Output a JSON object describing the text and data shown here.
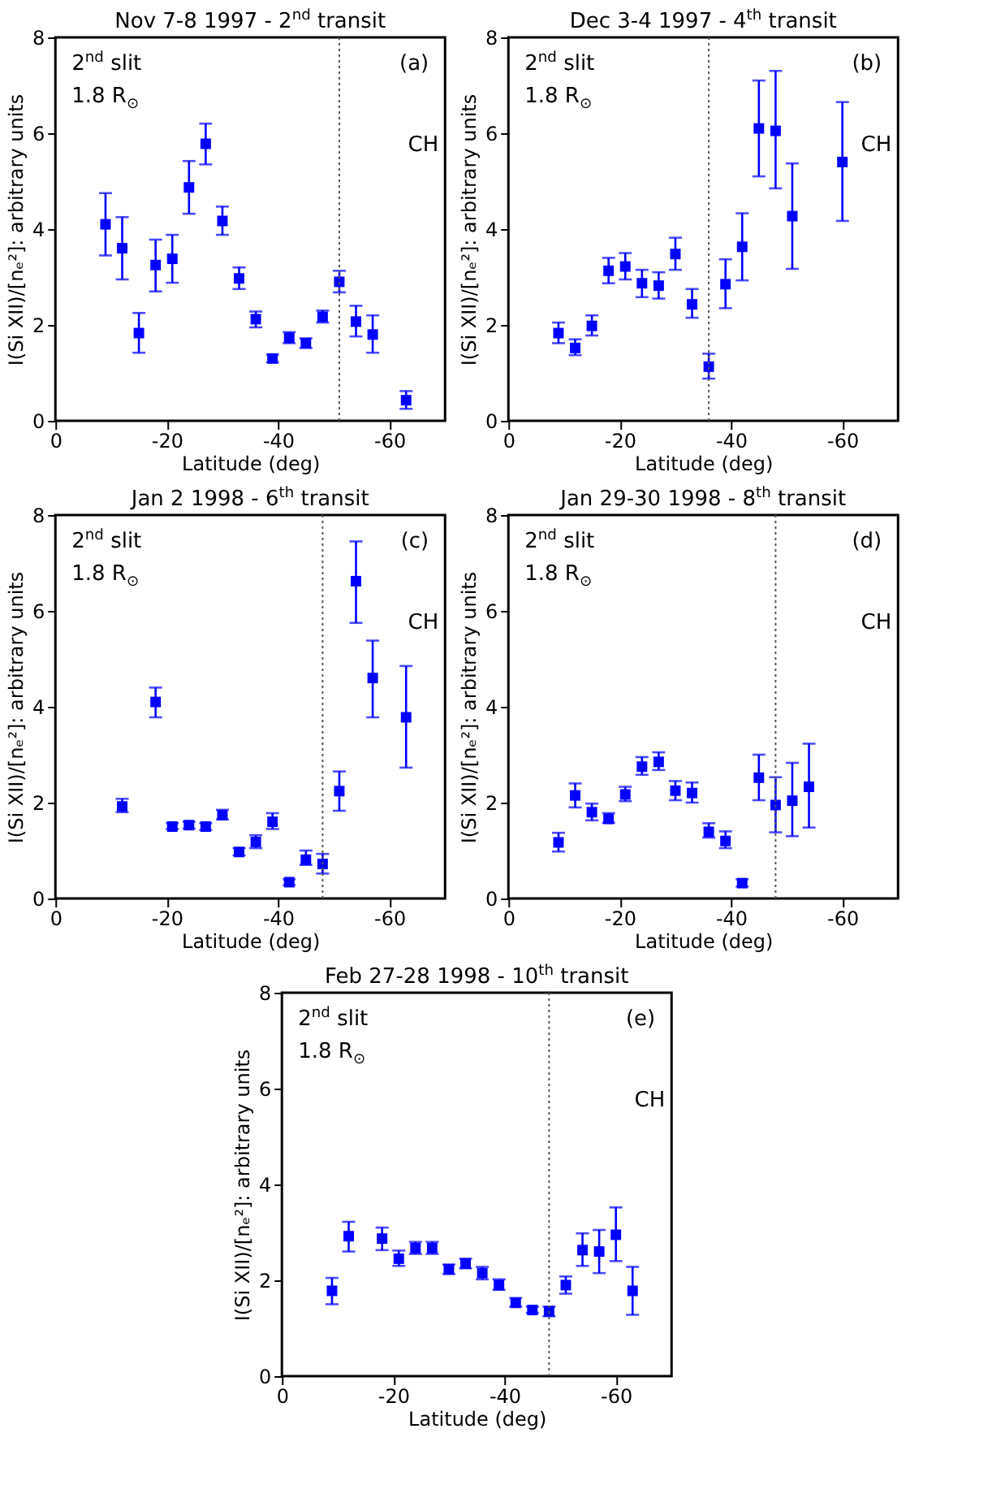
{
  "chart_data": [
    {
      "type": "scatter",
      "title": "Nov 7-8 1997 - 2$^{nd}$ transit",
      "xlabel": "Latitude (deg)",
      "ylabel": "I(Si XII)/[nₑ²]: arbitrary units",
      "xlim": [
        0,
        -70
      ],
      "ylim": [
        0,
        8
      ],
      "xticks": [
        0,
        -20,
        -40,
        -60
      ],
      "yticks": [
        0,
        2,
        4,
        6,
        8
      ],
      "marker": "square",
      "x": [
        -9,
        -12,
        -15,
        -18,
        -21,
        -24,
        -27,
        -30,
        -33,
        -36,
        -39,
        -42,
        -45,
        -48,
        -51,
        -54,
        -57,
        -63
      ],
      "series": [
        {
          "color": "#0000ff",
          "values": [
            4.1,
            3.6,
            1.83,
            3.25,
            3.38,
            4.87,
            5.78,
            4.17,
            2.97,
            2.12,
            1.3,
            1.73,
            1.62,
            2.17,
            2.9,
            2.07,
            1.8,
            0.43
          ],
          "errors": [
            [
              3.45,
              4.75
            ],
            [
              2.95,
              4.25
            ],
            [
              1.42,
              2.25
            ],
            [
              2.7,
              3.78
            ],
            [
              2.88,
              3.88
            ],
            [
              4.32,
              5.42
            ],
            [
              5.35,
              6.2
            ],
            [
              3.88,
              4.47
            ],
            [
              2.75,
              3.2
            ],
            [
              1.95,
              2.28
            ],
            [
              1.22,
              1.38
            ],
            [
              1.62,
              1.85
            ],
            [
              1.52,
              1.72
            ],
            [
              2.05,
              2.3
            ],
            [
              2.68,
              3.13
            ],
            [
              1.76,
              2.4
            ],
            [
              1.42,
              2.2
            ],
            [
              0.25,
              0.62
            ]
          ]
        }
      ],
      "ref_lines": [
        {
          "axis": "x",
          "value": -51,
          "color": "#555555",
          "line_style": "dotted"
        }
      ],
      "annotations": [
        "2$^{nd}$ slit",
        "1.8 R$_{⊙}$",
        "(a)",
        "CH"
      ]
    },
    {
      "type": "scatter",
      "title": "Dec 3-4 1997 - 4$^{th}$ transit",
      "xlabel": "Latitude (deg)",
      "ylabel": "I(Si XII)/[nₑ²]: arbitrary units",
      "xlim": [
        0,
        -70
      ],
      "ylim": [
        0,
        8
      ],
      "xticks": [
        0,
        -20,
        -40,
        -60
      ],
      "yticks": [
        0,
        2,
        4,
        6,
        8
      ],
      "marker": "square",
      "x": [
        -9,
        -12,
        -15,
        -18,
        -21,
        -24,
        -27,
        -30,
        -33,
        -36,
        -39,
        -42,
        -45,
        -48,
        -51,
        -60
      ],
      "series": [
        {
          "color": "#0000ff",
          "values": [
            1.83,
            1.52,
            1.98,
            3.13,
            3.22,
            2.87,
            2.82,
            3.48,
            2.43,
            1.13,
            2.85,
            3.63,
            6.1,
            6.05,
            4.27,
            5.4
          ],
          "errors": [
            [
              1.62,
              2.05
            ],
            [
              1.37,
              1.7
            ],
            [
              1.78,
              2.2
            ],
            [
              2.87,
              3.4
            ],
            [
              2.95,
              3.5
            ],
            [
              2.58,
              3.15
            ],
            [
              2.55,
              3.1
            ],
            [
              3.15,
              3.82
            ],
            [
              2.15,
              2.75
            ],
            [
              0.88,
              1.4
            ],
            [
              2.35,
              3.37
            ],
            [
              2.93,
              4.33
            ],
            [
              5.1,
              7.1
            ],
            [
              4.85,
              7.3
            ],
            [
              3.17,
              5.37
            ],
            [
              4.17,
              6.65
            ]
          ]
        }
      ],
      "ref_lines": [
        {
          "axis": "x",
          "value": -36,
          "color": "#555555",
          "line_style": "dotted"
        }
      ],
      "annotations": [
        "2$^{nd}$ slit",
        "1.8 R$_{⊙}$",
        "(b)",
        "CH"
      ]
    },
    {
      "type": "scatter",
      "title": "Jan 2 1998 - 6$^{th}$ transit",
      "xlabel": "Latitude (deg)",
      "ylabel": "I(Si XII)/[nₑ²]: arbitrary units",
      "xlim": [
        0,
        -70
      ],
      "ylim": [
        0,
        8
      ],
      "xticks": [
        0,
        -20,
        -40,
        -60
      ],
      "yticks": [
        0,
        2,
        4,
        6,
        8
      ],
      "marker": "square",
      "x": [
        -12,
        -18,
        -21,
        -24,
        -27,
        -30,
        -33,
        -36,
        -39,
        -42,
        -45,
        -48,
        -51,
        -54,
        -57,
        -63
      ],
      "series": [
        {
          "color": "#0000ff",
          "values": [
            1.92,
            4.1,
            1.5,
            1.53,
            1.5,
            1.74,
            0.97,
            1.18,
            1.6,
            0.34,
            0.81,
            0.72,
            2.24,
            6.62,
            4.6,
            3.78
          ],
          "errors": [
            [
              1.8,
              2.08
            ],
            [
              3.78,
              4.4
            ],
            [
              1.45,
              1.57
            ],
            [
              1.46,
              1.6
            ],
            [
              1.43,
              1.57
            ],
            [
              1.65,
              1.85
            ],
            [
              0.9,
              1.05
            ],
            [
              1.05,
              1.32
            ],
            [
              1.45,
              1.78
            ],
            [
              0.28,
              0.4
            ],
            [
              0.7,
              1.0
            ],
            [
              0.52,
              0.93
            ],
            [
              1.83,
              2.65
            ],
            [
              5.75,
              7.45
            ],
            [
              3.78,
              5.38
            ],
            [
              2.73,
              4.85
            ]
          ]
        }
      ],
      "ref_lines": [
        {
          "axis": "x",
          "value": -48,
          "color": "#555555",
          "line_style": "dotted"
        }
      ],
      "annotations": [
        "2$^{nd}$ slit",
        "1.8 R$_{⊙}$",
        "(c)",
        "CH"
      ]
    },
    {
      "type": "scatter",
      "title": "Jan 29-30 1998 - 8$^{th}$ transit",
      "xlabel": "Latitude (deg)",
      "ylabel": "I(Si XII)/[nₑ²]: arbitrary units",
      "xlim": [
        0,
        -70
      ],
      "ylim": [
        0,
        8
      ],
      "xticks": [
        0,
        -20,
        -40,
        -60
      ],
      "yticks": [
        0,
        2,
        4,
        6,
        8
      ],
      "marker": "square",
      "x": [
        -9,
        -12,
        -15,
        -18,
        -21,
        -24,
        -27,
        -30,
        -33,
        -36,
        -39,
        -42,
        -45,
        -48,
        -51,
        -54
      ],
      "series": [
        {
          "color": "#0000ff",
          "values": [
            1.17,
            2.15,
            1.8,
            1.66,
            2.17,
            2.75,
            2.85,
            2.25,
            2.2,
            1.39,
            1.2,
            0.32,
            2.52,
            1.95,
            2.04,
            2.33
          ],
          "errors": [
            [
              0.98,
              1.37
            ],
            [
              1.9,
              2.4
            ],
            [
              1.63,
              1.98
            ],
            [
              1.58,
              1.78
            ],
            [
              2.03,
              2.33
            ],
            [
              2.58,
              2.95
            ],
            [
              2.68,
              3.05
            ],
            [
              2.05,
              2.45
            ],
            [
              2.0,
              2.42
            ],
            [
              1.27,
              1.57
            ],
            [
              1.05,
              1.4
            ],
            [
              0.25,
              0.4
            ],
            [
              2.05,
              3.0
            ],
            [
              1.38,
              2.53
            ],
            [
              1.3,
              2.83
            ],
            [
              1.48,
              3.23
            ]
          ]
        }
      ],
      "ref_lines": [
        {
          "axis": "x",
          "value": -48,
          "color": "#555555",
          "line_style": "dotted"
        }
      ],
      "annotations": [
        "2$^{nd}$ slit",
        "1.8 R$_{⊙}$",
        "(d)",
        "CH"
      ]
    },
    {
      "type": "scatter",
      "title": "Feb 27-28 1998 - 10$^{th}$ transit",
      "xlabel": "Latitude (deg)",
      "ylabel": "I(Si XII)/[nₑ²]: arbitrary units",
      "xlim": [
        0,
        -70
      ],
      "ylim": [
        0,
        8
      ],
      "xticks": [
        0,
        -20,
        -40,
        -60
      ],
      "yticks": [
        0,
        2,
        4,
        6,
        8
      ],
      "marker": "square",
      "x": [
        -9,
        -12,
        -18,
        -21,
        -24,
        -27,
        -30,
        -33,
        -36,
        -39,
        -42,
        -45,
        -48,
        -51,
        -54,
        -57,
        -60,
        -63
      ],
      "series": [
        {
          "color": "#0000ff",
          "values": [
            1.78,
            2.92,
            2.87,
            2.45,
            2.67,
            2.67,
            2.23,
            2.35,
            2.15,
            1.9,
            1.53,
            1.38,
            1.35,
            1.9,
            2.63,
            2.6,
            2.95,
            1.78
          ],
          "errors": [
            [
              1.5,
              2.05
            ],
            [
              2.6,
              3.22
            ],
            [
              2.63,
              3.1
            ],
            [
              2.3,
              2.62
            ],
            [
              2.55,
              2.8
            ],
            [
              2.55,
              2.8
            ],
            [
              2.13,
              2.33
            ],
            [
              2.25,
              2.45
            ],
            [
              2.02,
              2.28
            ],
            [
              1.8,
              2.02
            ],
            [
              1.45,
              1.63
            ],
            [
              1.32,
              1.45
            ],
            [
              1.25,
              1.45
            ],
            [
              1.72,
              2.08
            ],
            [
              2.3,
              2.98
            ],
            [
              2.15,
              3.05
            ],
            [
              2.4,
              3.52
            ],
            [
              1.28,
              2.28
            ]
          ]
        }
      ],
      "ref_lines": [
        {
          "axis": "x",
          "value": -48,
          "color": "#555555",
          "line_style": "dotted"
        }
      ],
      "annotations": [
        "2$^{nd}$ slit",
        "1.8 R$_{⊙}$",
        "(e)",
        "CH"
      ]
    }
  ]
}
